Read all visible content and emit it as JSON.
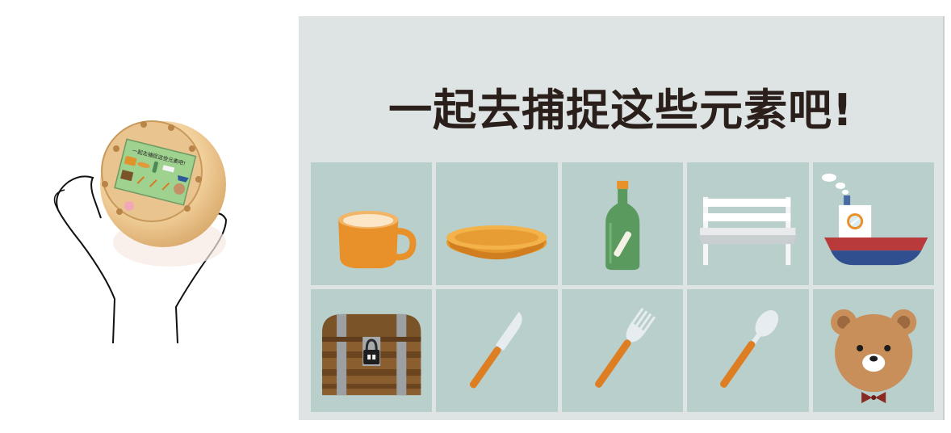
{
  "device_screen": {
    "headline": "一起去捕捉这些元素吧!"
  },
  "panel": {
    "headline": "一起去捕捉这些元素吧!",
    "items": [
      {
        "icon": "mug-icon"
      },
      {
        "icon": "plate-icon"
      },
      {
        "icon": "bottle-icon"
      },
      {
        "icon": "bench-icon"
      },
      {
        "icon": "boat-icon"
      },
      {
        "icon": "treasure-chest-icon"
      },
      {
        "icon": "knife-icon"
      },
      {
        "icon": "fork-icon"
      },
      {
        "icon": "spoon-icon"
      },
      {
        "icon": "bear-icon"
      }
    ]
  },
  "colors": {
    "panel_bg": "#dde4e3",
    "cell_bg": "#b9cfcc",
    "accent_orange": "#e0932c",
    "text": "#2a1f1a"
  }
}
